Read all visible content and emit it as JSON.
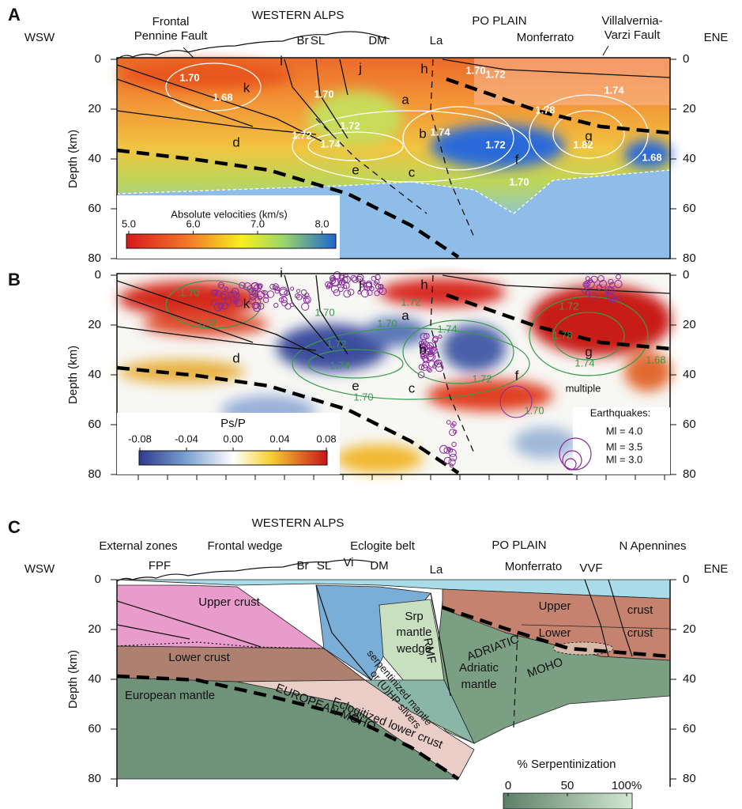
{
  "panel_a": {
    "letter": "A",
    "left_label": "WSW",
    "right_label": "ENE",
    "top_labels": [
      "Frontal",
      "Pennine Fault",
      "WESTERN ALPS",
      "Br",
      "SL",
      "DM",
      "La",
      "PO PLAIN",
      "Monferrato",
      "Villalvernia-",
      "Varzi Fault"
    ],
    "axis_label": "Depth (km)",
    "depth_ticks": [
      0,
      20,
      40,
      60,
      80
    ],
    "features": [
      "i",
      "k",
      "j",
      "h",
      "a",
      "b",
      "d",
      "e",
      "c",
      "f",
      "g"
    ],
    "contours": [
      "1.70",
      "1.68",
      "1.70",
      "1.72",
      "1.74",
      "1.72",
      "1.74",
      "1.72",
      "1.70",
      "1.70",
      "1.72",
      "1.74",
      "1.78",
      "1.82",
      "1.68"
    ],
    "colorbar": {
      "title": "Absolute velocities (km/s)",
      "ticks": [
        {
          "value": 5,
          "label": "5.0"
        },
        {
          "value": 6,
          "label": "6.0"
        },
        {
          "value": 7,
          "label": "7.0"
        },
        {
          "value": 8,
          "label": "8.0"
        }
      ]
    }
  },
  "panel_b": {
    "letter": "B",
    "axis_label": "Depth (km)",
    "depth_ticks": [
      0,
      20,
      40,
      60,
      80
    ],
    "features": [
      "i",
      "k",
      "j",
      "h",
      "a",
      "b",
      "d",
      "e",
      "c",
      "f",
      "g"
    ],
    "contours": [
      "1.70",
      "1.68",
      "1.70",
      "1.72",
      "1.74",
      "1.72",
      "1.70",
      "1.74",
      "1.70",
      "1.72",
      "1.70",
      "1.72",
      "1.78",
      "1.74",
      "1.68"
    ],
    "note": "multiple",
    "colorbar": {
      "title": "Ps/P",
      "ticks": [
        {
          "value": -0.08,
          "label": "-0.08"
        },
        {
          "value": -0.04,
          "label": "-0.04"
        },
        {
          "value": 0,
          "label": "0.00"
        },
        {
          "value": 0.04,
          "label": "0.04"
        },
        {
          "value": 0.08,
          "label": "0.08"
        }
      ]
    },
    "legend": {
      "title": "Earthquakes:",
      "entries": [
        "Ml = 4.0",
        "Ml = 3.5",
        "Ml = 3.0"
      ]
    }
  },
  "panel_c": {
    "letter": "C",
    "left_label": "WSW",
    "right_label": "ENE",
    "axis_label": "Depth (km)",
    "depth_ticks": [
      0,
      20,
      40,
      60,
      80
    ],
    "top_labels": [
      "WESTERN ALPS",
      "External zones",
      "Frontal wedge",
      "Eclogite belt",
      "PO PLAIN",
      "N Apennines",
      "FPF",
      "Br",
      "SL",
      "Vi",
      "DM",
      "La",
      "Monferrato",
      "VVF"
    ],
    "units": [
      "Upper crust",
      "Lower crust",
      "European mantle",
      "EUROPEAN MOHO",
      "Eclogitized lower crust",
      "Srp",
      "mantle",
      "wedge",
      "RMF",
      "serpentinized mantle",
      "or (U)HP slivers",
      "ADRIATIC",
      "MOHO",
      "Adriatic",
      "mantle",
      "Upper",
      "crust",
      "Lower",
      "crust"
    ],
    "colorbar": {
      "title": "% Serpentinization",
      "ticks": [
        {
          "value": 0,
          "label": "0"
        },
        {
          "value": 50,
          "label": "50"
        },
        {
          "value": 100,
          "label": "100%"
        }
      ]
    }
  }
}
